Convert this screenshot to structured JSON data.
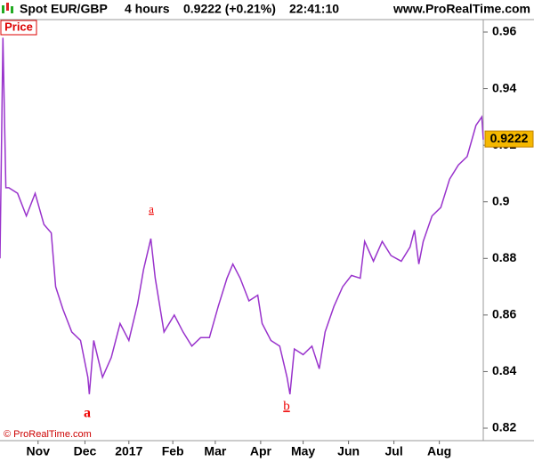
{
  "chart_data": {
    "type": "line",
    "title": "Spot EUR/GBP",
    "timeframe": "4 hours",
    "quote": "0.9222 (+0.21%)",
    "time": "22:41:10",
    "source_url": "www.ProRealTime.com",
    "copyright": "© ProRealTime.com",
    "annotations": [
      "a",
      "a",
      "b"
    ],
    "price_marker": {
      "value": 0.9222,
      "label": "0.9222"
    },
    "x": [
      0,
      2,
      4,
      6,
      12,
      18,
      24,
      30,
      35,
      38,
      43,
      49,
      55,
      60,
      61,
      64,
      70,
      76,
      82,
      88,
      94,
      98,
      103,
      106,
      112,
      119,
      125,
      131,
      137,
      143,
      149,
      155,
      159,
      164,
      170,
      176,
      179,
      185,
      191,
      196,
      198,
      201,
      207,
      213,
      218,
      222,
      228,
      234,
      240,
      246,
      249,
      255,
      261,
      267,
      274,
      280,
      283,
      286,
      289,
      295,
      301,
      307,
      313,
      319,
      325,
      329,
      330
    ],
    "series": [
      {
        "name": "Price",
        "color": "#9933cc",
        "values": [
          0.88,
          0.958,
          0.905,
          0.905,
          0.903,
          0.895,
          0.903,
          0.892,
          0.889,
          0.87,
          0.862,
          0.854,
          0.851,
          0.838,
          0.832,
          0.851,
          0.838,
          0.845,
          0.857,
          0.851,
          0.864,
          0.876,
          0.887,
          0.873,
          0.854,
          0.86,
          0.854,
          0.849,
          0.852,
          0.852,
          0.863,
          0.873,
          0.878,
          0.873,
          0.865,
          0.867,
          0.857,
          0.851,
          0.849,
          0.838,
          0.832,
          0.848,
          0.846,
          0.849,
          0.841,
          0.854,
          0.863,
          0.87,
          0.874,
          0.873,
          0.886,
          0.879,
          0.886,
          0.881,
          0.879,
          0.884,
          0.89,
          0.878,
          0.886,
          0.895,
          0.898,
          0.908,
          0.913,
          0.916,
          0.927,
          0.93,
          0.922
        ]
      }
    ],
    "xlim": [
      0,
      330
    ],
    "xticks": [
      {
        "value": 26,
        "label": "Nov"
      },
      {
        "value": 58,
        "label": "Dec"
      },
      {
        "value": 88,
        "label": "2017"
      },
      {
        "value": 118,
        "label": "Feb"
      },
      {
        "value": 147,
        "label": "Mar"
      },
      {
        "value": 178,
        "label": "Apr"
      },
      {
        "value": 207,
        "label": "May"
      },
      {
        "value": 238,
        "label": "Jun"
      },
      {
        "value": 269,
        "label": "Jul"
      },
      {
        "value": 300,
        "label": "Aug"
      }
    ],
    "ylim": [
      0.8156,
      0.9644
    ],
    "yticks": [
      0.82,
      0.84,
      0.86,
      0.88,
      0.9,
      0.92,
      0.94,
      0.96
    ],
    "grid": false
  }
}
